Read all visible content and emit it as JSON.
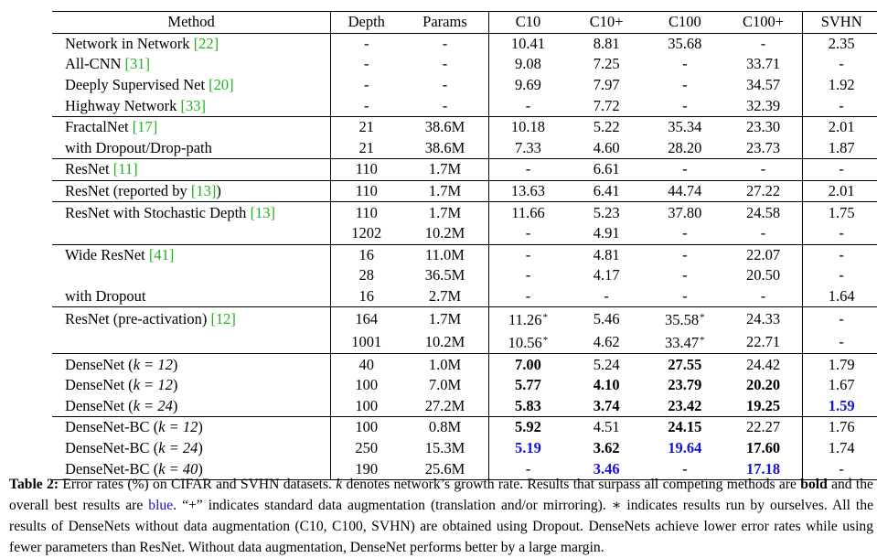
{
  "header": {
    "method": "Method",
    "depth": "Depth",
    "params": "Params",
    "c10": "C10",
    "c10p": "C10+",
    "c100": "C100",
    "c100p": "C100+",
    "svhn": "SVHN"
  },
  "rows": [
    {
      "method": "Network in Network ",
      "cite": "[22]",
      "depth": "-",
      "params": "-",
      "c10": "10.41",
      "c10p": "8.81",
      "c100": "35.68",
      "c100p": "-",
      "svhn": "2.35",
      "sep": true
    },
    {
      "method": "All-CNN ",
      "cite": "[31]",
      "depth": "-",
      "params": "-",
      "c10": "9.08",
      "c10p": "7.25",
      "c100": "-",
      "c100p": "33.71",
      "svhn": "-"
    },
    {
      "method": "Deeply Supervised Net ",
      "cite": "[20]",
      "depth": "-",
      "params": "-",
      "c10": "9.69",
      "c10p": "7.97",
      "c100": "-",
      "c100p": "34.57",
      "svhn": "1.92"
    },
    {
      "method": "Highway Network ",
      "cite": "[33]",
      "depth": "-",
      "params": "-",
      "c10": "-",
      "c10p": "7.72",
      "c100": "-",
      "c100p": "32.39",
      "svhn": "-"
    },
    {
      "method": "FractalNet ",
      "cite": "[17]",
      "depth": "21",
      "params": "38.6M",
      "c10": "10.18",
      "c10p": "5.22",
      "c100": "35.34",
      "c100p": "23.30",
      "svhn": "2.01",
      "sep": true
    },
    {
      "method": "with Dropout/Drop-path",
      "depth": "21",
      "params": "38.6M",
      "c10": "7.33",
      "c10p": "4.60",
      "c100": "28.20",
      "c100p": "23.73",
      "svhn": "1.87"
    },
    {
      "method": "ResNet ",
      "cite": "[11]",
      "depth": "110",
      "params": "1.7M",
      "c10": "-",
      "c10p": "6.61",
      "c100": "-",
      "c100p": "-",
      "svhn": "-",
      "sep": true
    },
    {
      "method": "ResNet (reported by ",
      "cite": "[13]",
      "post": ")",
      "depth": "110",
      "params": "1.7M",
      "c10": "13.63",
      "c10p": "6.41",
      "c100": "44.74",
      "c100p": "27.22",
      "svhn": "2.01",
      "sep": true
    },
    {
      "method": "ResNet with Stochastic Depth ",
      "cite": "[13]",
      "depth": "110",
      "params": "1.7M",
      "c10": "11.66",
      "c10p": "5.23",
      "c100": "37.80",
      "c100p": "24.58",
      "svhn": "1.75",
      "sep": true
    },
    {
      "method": "",
      "depth": "1202",
      "params": "10.2M",
      "c10": "-",
      "c10p": "4.91",
      "c100": "-",
      "c100p": "-",
      "svhn": "-"
    },
    {
      "method": "Wide ResNet ",
      "cite": "[41]",
      "depth": "16",
      "params": "11.0M",
      "c10": "-",
      "c10p": "4.81",
      "c100": "-",
      "c100p": "22.07",
      "svhn": "-",
      "sep": true
    },
    {
      "method": "",
      "depth": "28",
      "params": "36.5M",
      "c10": "-",
      "c10p": "4.17",
      "c100": "-",
      "c100p": "20.50",
      "svhn": "-"
    },
    {
      "method": "with Dropout",
      "depth": "16",
      "params": "2.7M",
      "c10": "-",
      "c10p": "-",
      "c100": "-",
      "c100p": "-",
      "svhn": "1.64"
    },
    {
      "method": "ResNet (pre-activation) ",
      "cite": "[12]",
      "depth": "164",
      "params": "1.7M",
      "c10": "11.26",
      "c10_star": "*",
      "c10p": "5.46",
      "c100": "35.58",
      "c100_star": "*",
      "c100p": "24.33",
      "svhn": "-",
      "sep": true
    },
    {
      "method": "",
      "depth": "1001",
      "params": "10.2M",
      "c10": "10.56",
      "c10_star": "*",
      "c10p": "4.62",
      "c100": "33.47",
      "c100_star": "*",
      "c100p": "22.71",
      "svhn": "-"
    },
    {
      "method": "DenseNet (",
      "k": "k = 12",
      "post": ")",
      "depth": "40",
      "params": "1.0M",
      "c10": "7.00",
      "c10_style": "bold",
      "c10p": "5.24",
      "c100": "27.55",
      "c100_style": "bold",
      "c100p": "24.42",
      "svhn": "1.79",
      "sep": true
    },
    {
      "method": "DenseNet (",
      "k": "k = 12",
      "post": ")",
      "depth": "100",
      "params": "7.0M",
      "c10": "5.77",
      "c10_style": "bold",
      "c10p": "4.10",
      "c10p_style": "bold",
      "c100": "23.79",
      "c100_style": "bold",
      "c100p": "20.20",
      "c100p_style": "bold",
      "svhn": "1.67"
    },
    {
      "method": "DenseNet (",
      "k": "k = 24",
      "post": ")",
      "depth": "100",
      "params": "27.2M",
      "c10": "5.83",
      "c10_style": "bold",
      "c10p": "3.74",
      "c10p_style": "bold",
      "c100": "23.42",
      "c100_style": "bold",
      "c100p": "19.25",
      "c100p_style": "bold",
      "svhn": "1.59",
      "svhn_style": "blue"
    },
    {
      "method": "DenseNet-BC (",
      "k": "k = 12",
      "post": ")",
      "depth": "100",
      "params": "0.8M",
      "c10": "5.92",
      "c10_style": "bold",
      "c10p": "4.51",
      "c100": "24.15",
      "c100_style": "bold",
      "c100p": "22.27",
      "svhn": "1.76",
      "sep": true
    },
    {
      "method": "DenseNet-BC (",
      "k": "k = 24",
      "post": ")",
      "depth": "250",
      "params": "15.3M",
      "c10": "5.19",
      "c10_style": "blue",
      "c10p": "3.62",
      "c10p_style": "bold",
      "c100": "19.64",
      "c100_style": "blue",
      "c100p": "17.60",
      "c100p_style": "bold",
      "svhn": "1.74"
    },
    {
      "method": "DenseNet-BC (",
      "k": "k = 40",
      "post": ")",
      "depth": "190",
      "params": "25.6M",
      "c10": "-",
      "c10p": "3.46",
      "c10p_style": "blue",
      "c100": "-",
      "c100p": "17.18",
      "c100p_style": "blue",
      "svhn": "-"
    }
  ],
  "caption": {
    "label": "Table 2:",
    "t1": " Error rates (%) on CIFAR and SVHN datasets. ",
    "k": "k",
    "t2": " denotes network’s growth rate. Results that surpass all competing methods are ",
    "bold": "bold",
    "t3": " and the overall best results are ",
    "blue": "blue",
    "t4": ". “+” indicates standard data augmentation (translation and/or mirroring). ",
    "star": "∗",
    "t5": " indicates results run by ourselves. All the results of DenseNets without data augmentation (C10, C100, SVHN) are obtained using Dropout. DenseNets achieve lower error rates while using fewer parameters than ResNet. Without data augmentation, DenseNet performs better by a large margin."
  },
  "colors": {
    "cite": "#1db31d",
    "best": "#1515d8"
  }
}
